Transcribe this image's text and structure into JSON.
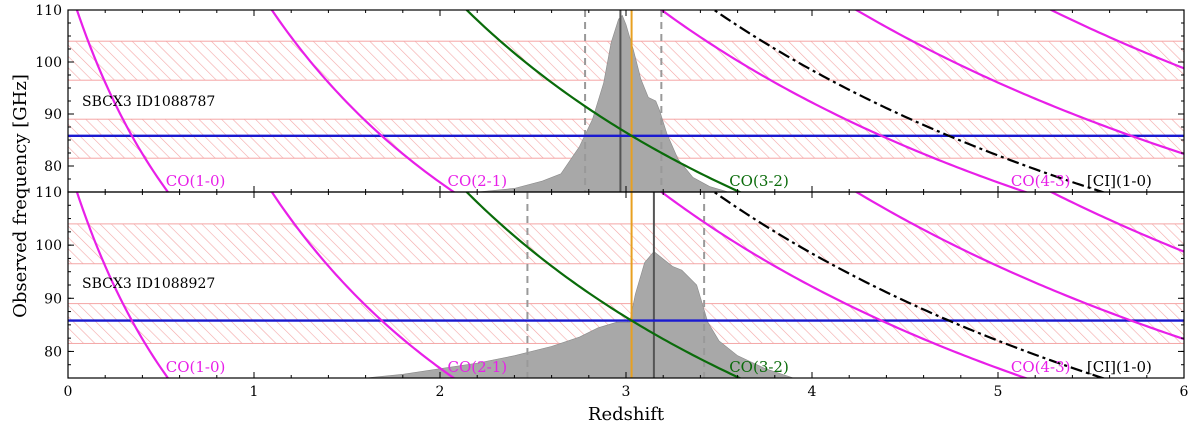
{
  "chart_data": {
    "type": "line",
    "xlabel": "Redshift",
    "ylabel": "Observed frequency [GHz]",
    "xlim": [
      0,
      6
    ],
    "ylim": [
      75,
      110
    ],
    "xticks": [
      "0",
      "1",
      "2",
      "3",
      "4",
      "5",
      "6"
    ],
    "yticks": [
      "80",
      "90",
      "100",
      "110"
    ],
    "colors": {
      "co": "#e81fe8",
      "co32": "#0a6b0a",
      "ci": "#000000",
      "tuning": "#1a1ad0",
      "band": "#f4a6a6",
      "pdf": "#a8a8a8",
      "marker": "#e8a020",
      "peak": "#555555",
      "bounds": "#999999"
    },
    "lines": [
      {
        "label": "CO(1-0)",
        "rest_ghz": 115.27,
        "color": "co"
      },
      {
        "label": "CO(2-1)",
        "rest_ghz": 230.54,
        "color": "co"
      },
      {
        "label": "CO(3-2)",
        "rest_ghz": 345.8,
        "color": "co32"
      },
      {
        "label": "CO(4-3)",
        "rest_ghz": 461.04,
        "color": "co"
      },
      {
        "label": "",
        "rest_ghz": 576.27,
        "color": "co"
      },
      {
        "label": "",
        "rest_ghz": 691.47,
        "color": "co"
      },
      {
        "label": "",
        "rest_ghz": 806.65,
        "color": "co"
      },
      {
        "label": "",
        "rest_ghz": 921.8,
        "color": "co"
      },
      {
        "label": "[CI](1-0)",
        "rest_ghz": 492.16,
        "color": "ci",
        "dash": true
      }
    ],
    "hatched_bands": [
      [
        81.5,
        89.0
      ],
      [
        96.5,
        104.0
      ]
    ],
    "tuning_freq_ghz": 85.8,
    "panels": [
      {
        "name": "SBCX3 ID1088787",
        "z_marker": 3.03,
        "z_peak": 2.97,
        "z_bounds": [
          2.78,
          3.19
        ],
        "pdf": [
          [
            2.2,
            0
          ],
          [
            2.4,
            0.02
          ],
          [
            2.55,
            0.06
          ],
          [
            2.65,
            0.1
          ],
          [
            2.75,
            0.25
          ],
          [
            2.82,
            0.4
          ],
          [
            2.88,
            0.6
          ],
          [
            2.92,
            0.82
          ],
          [
            2.96,
            0.95
          ],
          [
            2.98,
            0.97
          ],
          [
            3.0,
            0.92
          ],
          [
            3.04,
            0.78
          ],
          [
            3.08,
            0.62
          ],
          [
            3.12,
            0.52
          ],
          [
            3.16,
            0.5
          ],
          [
            3.18,
            0.45
          ],
          [
            3.22,
            0.32
          ],
          [
            3.28,
            0.18
          ],
          [
            3.36,
            0.08
          ],
          [
            3.45,
            0.03
          ],
          [
            3.55,
            0
          ]
        ]
      },
      {
        "name": "SBCX3 ID1088927",
        "z_marker": 3.03,
        "z_peak": 3.15,
        "z_bounds": [
          2.47,
          3.42
        ],
        "pdf": [
          [
            1.6,
            0
          ],
          [
            1.8,
            0.02
          ],
          [
            2.0,
            0.05
          ],
          [
            2.2,
            0.08
          ],
          [
            2.4,
            0.12
          ],
          [
            2.6,
            0.17
          ],
          [
            2.75,
            0.22
          ],
          [
            2.85,
            0.27
          ],
          [
            2.95,
            0.3
          ],
          [
            3.0,
            0.3
          ],
          [
            3.02,
            0.3
          ],
          [
            3.05,
            0.45
          ],
          [
            3.1,
            0.62
          ],
          [
            3.15,
            0.68
          ],
          [
            3.2,
            0.64
          ],
          [
            3.25,
            0.6
          ],
          [
            3.3,
            0.58
          ],
          [
            3.38,
            0.5
          ],
          [
            3.44,
            0.3
          ],
          [
            3.5,
            0.2
          ],
          [
            3.6,
            0.12
          ],
          [
            3.75,
            0.05
          ],
          [
            3.9,
            0
          ]
        ]
      }
    ]
  }
}
